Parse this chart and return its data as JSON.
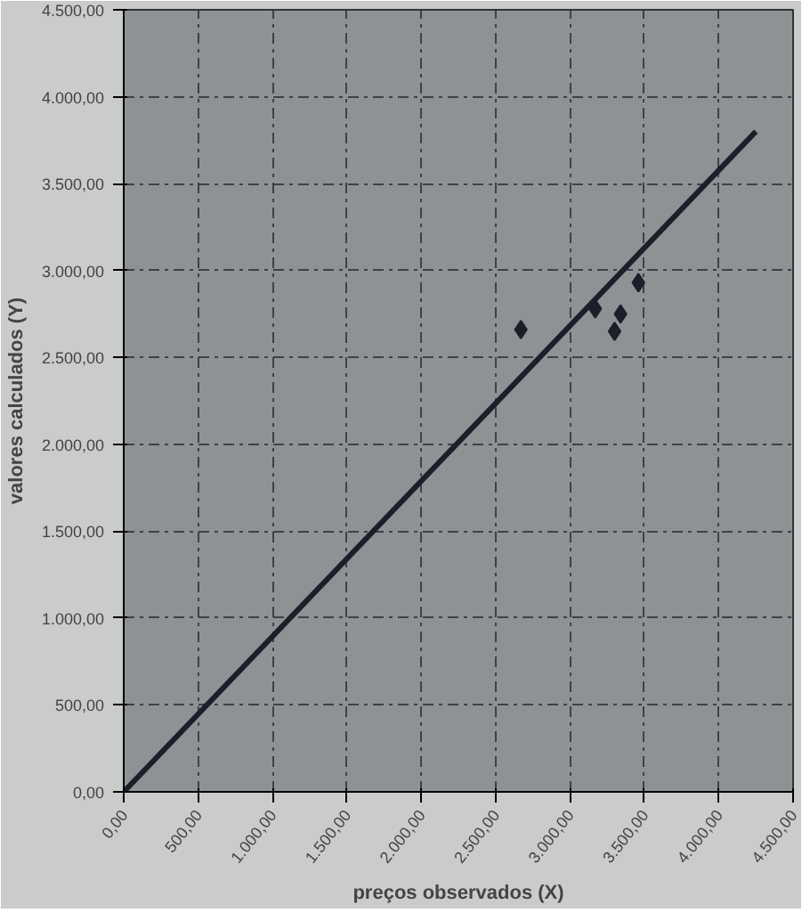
{
  "chart_data": {
    "type": "scatter",
    "xlabel": "preços observados (X)",
    "ylabel": "valores calculados (Y)",
    "xlim": [
      0,
      4500
    ],
    "ylim": [
      0,
      4500
    ],
    "xticks": [
      {
        "value": 0,
        "label": "0,00"
      },
      {
        "value": 500,
        "label": "500,00"
      },
      {
        "value": 1000,
        "label": "1.000,00"
      },
      {
        "value": 1500,
        "label": "1.500,00"
      },
      {
        "value": 2000,
        "label": "2.000,00"
      },
      {
        "value": 2500,
        "label": "2.500,00"
      },
      {
        "value": 3000,
        "label": "3.000,00"
      },
      {
        "value": 3500,
        "label": "3.500,00"
      },
      {
        "value": 4000,
        "label": "4.000,00"
      },
      {
        "value": 4500,
        "label": "4.500,00"
      }
    ],
    "yticks": [
      {
        "value": 0,
        "label": "0,00"
      },
      {
        "value": 500,
        "label": "500,00"
      },
      {
        "value": 1000,
        "label": "1.000,00"
      },
      {
        "value": 1500,
        "label": "1.500,00"
      },
      {
        "value": 2000,
        "label": "2.000,00"
      },
      {
        "value": 2500,
        "label": "2.500,00"
      },
      {
        "value": 3000,
        "label": "3.000,00"
      },
      {
        "value": 3500,
        "label": "3.500,00"
      },
      {
        "value": 4000,
        "label": "4.000,00"
      },
      {
        "value": 4500,
        "label": "4.500,00"
      }
    ],
    "grid": true,
    "series": [
      {
        "color": "#1a1f2a",
        "marker": "diamond",
        "x": [
          3460,
          3340,
          3300,
          3170,
          2670
        ],
        "values": [
          2930,
          2750,
          2650,
          2780,
          2660
        ]
      },
      {
        "type": "line",
        "color": "#1a1f2a",
        "marker": "none",
        "x": [
          0,
          4250
        ],
        "values": [
          0,
          3800
        ]
      }
    ]
  }
}
